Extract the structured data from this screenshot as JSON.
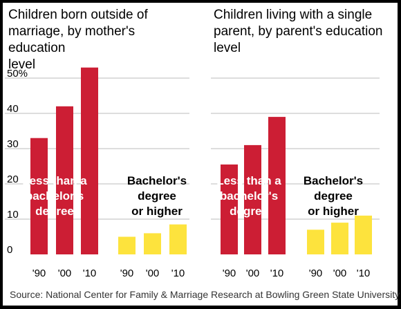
{
  "colors": {
    "less_than_bachelor": "#cc1e34",
    "bachelor_or_higher": "#fde33d",
    "gridline": "#bbbbbb",
    "text": "#000000"
  },
  "chart_data": [
    {
      "type": "bar",
      "title": "Children born outside of\nmarriage, by mother's education\nlevel",
      "ylim": [
        0,
        55
      ],
      "yticks": [
        "0",
        "10",
        "20",
        "30",
        "40",
        "50%"
      ],
      "categories": [
        "'90",
        "'00",
        "'10"
      ],
      "series": [
        {
          "name": "Less than a bachelor's degree",
          "label_lines": [
            "Less than a",
            "bachelor's",
            "degree"
          ],
          "values": [
            33,
            42,
            53
          ]
        },
        {
          "name": "Bachelor's degree or higher",
          "label_lines": [
            "Bachelor's",
            "degree",
            "or higher"
          ],
          "values": [
            5,
            6,
            8.5
          ]
        }
      ],
      "grid": true
    },
    {
      "type": "bar",
      "title": "Children living with a single\nparent, by parent's education\nlevel",
      "ylim": [
        0,
        55
      ],
      "categories": [
        "'90",
        "'00",
        "'10"
      ],
      "series": [
        {
          "name": "Less than a bachelor's degree",
          "label_lines": [
            "Less than a",
            "bachelor's",
            "degree"
          ],
          "values": [
            25.5,
            31,
            39
          ]
        },
        {
          "name": "Bachelor's degree or higher",
          "label_lines": [
            "Bachelor's",
            "degree",
            "or higher"
          ],
          "values": [
            7,
            9,
            11
          ]
        }
      ],
      "grid": true
    }
  ],
  "source": "Source: National Center for Family & Marriage Research at Bowling Green State University"
}
